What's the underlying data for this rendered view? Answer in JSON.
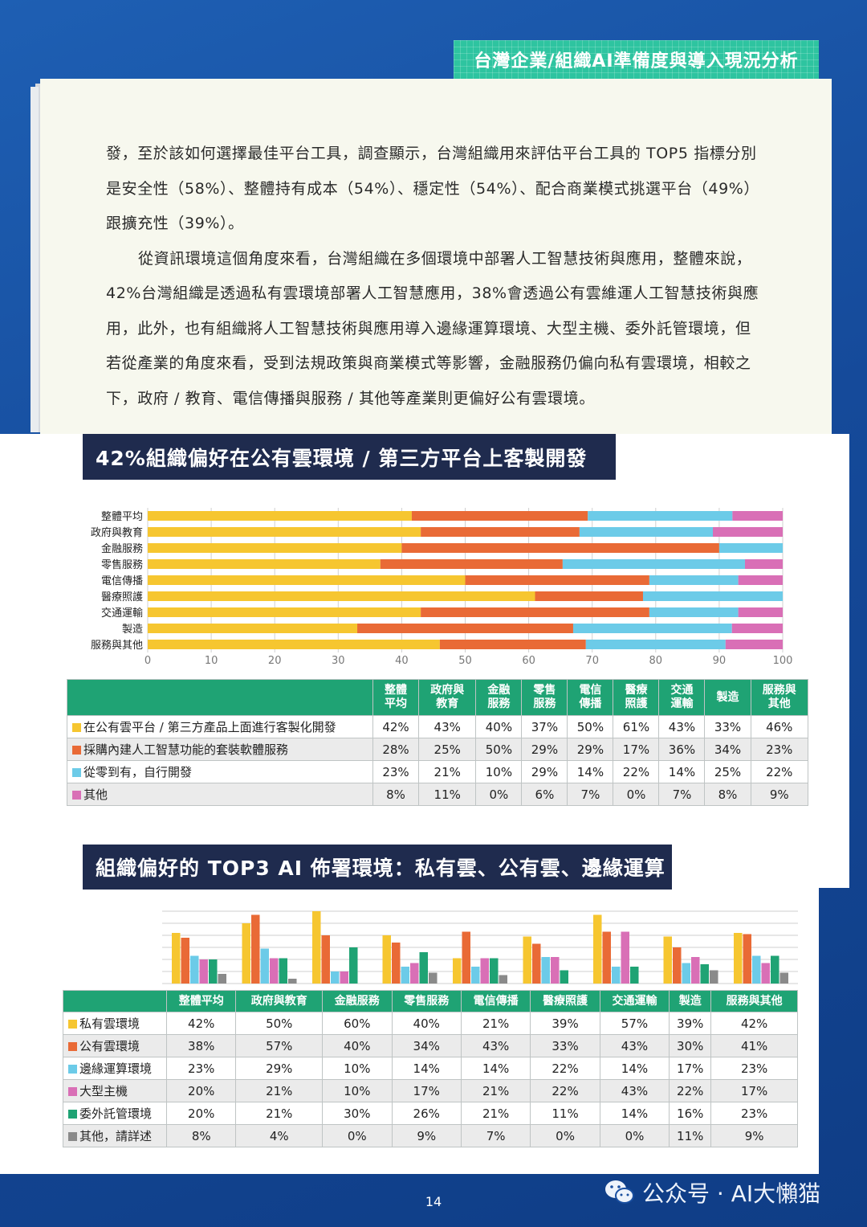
{
  "header": {
    "title": "台灣企業/組織AI準備度與導入現況分析"
  },
  "body": {
    "paragraph1": "發，至於該如何選擇最佳平台工具，調查顯示，台灣組織用來評估平台工具的 TOP5 指標分別是安全性（58%）、整體持有成本（54%）、穩定性（54%）、配合商業模式挑選平台（49%）跟擴充性（39%）。",
    "paragraph2": "從資訊環境這個角度來看，台灣組織在多個環境中部署人工智慧技術與應用，整體來說，42%台灣組織是透過私有雲環境部署人工智慧應用，38%會透過公有雲維運人工智慧技術與應用，此外，也有組織將人工智慧技術與應用導入邊緣運算環境、大型主機、委外託管環境，但若從產業的角度來看，受到法規政策與商業模式等影響，金融服務仍偏向私有雲環境，相較之下，政府 / 教育、電信傳播與服務 / 其他等產業則更偏好公有雲環境。"
  },
  "section1": {
    "title": "42%組織偏好在公有雲環境 / 第三方平台上客製開發"
  },
  "section2": {
    "title": "組織偏好的 TOP3 AI 佈署環境：私有雲、公有雲、邊緣運算"
  },
  "colors": {
    "yellow": "#f6c630",
    "orange": "#e96a36",
    "cyan": "#6ccbe8",
    "pink": "#d96fb6",
    "green": "#1fa374",
    "gray": "#8a8a8a",
    "navy": "#1f2b4e"
  },
  "chart_data": [
    {
      "type": "bar",
      "orientation": "horizontal-stacked",
      "categories": [
        "整體平均",
        "政府與教育",
        "金融服務",
        "零售服務",
        "電信傳播",
        "醫療照護",
        "交通運輸",
        "製造",
        "服務與其他"
      ],
      "xticks": [
        "0",
        "10",
        "20",
        "30",
        "40",
        "50",
        "60",
        "70",
        "80",
        "90",
        "100"
      ],
      "xlim": [
        0,
        100
      ],
      "grid": true,
      "series": [
        {
          "color": "yellow",
          "values": [
            42,
            43,
            40,
            37,
            50,
            61,
            43,
            33,
            46
          ]
        },
        {
          "color": "orange",
          "values": [
            28,
            25,
            50,
            29,
            29,
            17,
            36,
            34,
            23
          ]
        },
        {
          "color": "cyan",
          "values": [
            23,
            21,
            10,
            29,
            14,
            22,
            14,
            25,
            22
          ]
        },
        {
          "color": "pink",
          "values": [
            8,
            11,
            0,
            6,
            7,
            0,
            7,
            8,
            9
          ]
        }
      ],
      "table": {
        "headers": [
          "整體\n平均",
          "政府與\n教育",
          "金融\n服務",
          "零售\n服務",
          "電信\n傳播",
          "醫療\n照護",
          "交通\n運輸",
          "製造",
          "服務與\n其他"
        ],
        "rows": [
          {
            "label": "在公有雲平台 / 第三方產品上面進行客製化開發",
            "color": "yellow",
            "cells": [
              "42%",
              "43%",
              "40%",
              "37%",
              "50%",
              "61%",
              "43%",
              "33%",
              "46%"
            ]
          },
          {
            "label": "採購內建人工智慧功能的套裝軟體服務",
            "color": "orange",
            "cells": [
              "28%",
              "25%",
              "50%",
              "29%",
              "29%",
              "17%",
              "36%",
              "34%",
              "23%"
            ]
          },
          {
            "label": "從零到有，自行開發",
            "color": "cyan",
            "cells": [
              "23%",
              "21%",
              "10%",
              "29%",
              "14%",
              "22%",
              "14%",
              "25%",
              "22%"
            ]
          },
          {
            "label": "其他",
            "color": "pink",
            "cells": [
              "8%",
              "11%",
              "0%",
              "6%",
              "7%",
              "0%",
              "7%",
              "8%",
              "9%"
            ]
          }
        ]
      }
    },
    {
      "type": "bar",
      "orientation": "grouped-vertical",
      "categories": [
        "整體平均",
        "政府與教育",
        "金融服務",
        "零售服務",
        "電信傳播",
        "醫療照護",
        "交通運輸",
        "製造",
        "服務與其他"
      ],
      "ylim": [
        0,
        60
      ],
      "grid": true,
      "series": [
        {
          "name": "私有雲環境",
          "color": "yellow",
          "values": [
            42,
            50,
            60,
            40,
            21,
            39,
            57,
            39,
            42
          ]
        },
        {
          "name": "公有雲環境",
          "color": "orange",
          "values": [
            38,
            57,
            40,
            34,
            43,
            33,
            43,
            30,
            41
          ]
        },
        {
          "name": "邊緣運算環境",
          "color": "cyan",
          "values": [
            23,
            29,
            10,
            14,
            14,
            22,
            14,
            17,
            23
          ]
        },
        {
          "name": "大型主機",
          "color": "pink",
          "values": [
            20,
            21,
            10,
            17,
            21,
            22,
            43,
            22,
            17
          ]
        },
        {
          "name": "委外託管環境",
          "color": "green",
          "values": [
            20,
            21,
            30,
            26,
            21,
            11,
            14,
            16,
            23
          ]
        },
        {
          "name": "其他，請詳述",
          "color": "gray",
          "values": [
            8,
            4,
            0,
            9,
            7,
            0,
            0,
            11,
            9
          ]
        }
      ],
      "table": {
        "headers": [
          "整體平均",
          "政府與教育",
          "金融服務",
          "零售服務",
          "電信傳播",
          "醫療照護",
          "交通運輸",
          "製造",
          "服務與其他"
        ],
        "rows": [
          {
            "label": "私有雲環境",
            "color": "yellow",
            "cells": [
              "42%",
              "50%",
              "60%",
              "40%",
              "21%",
              "39%",
              "57%",
              "39%",
              "42%"
            ]
          },
          {
            "label": "公有雲環境",
            "color": "orange",
            "cells": [
              "38%",
              "57%",
              "40%",
              "34%",
              "43%",
              "33%",
              "43%",
              "30%",
              "41%"
            ]
          },
          {
            "label": "邊緣運算環境",
            "color": "cyan",
            "cells": [
              "23%",
              "29%",
              "10%",
              "14%",
              "14%",
              "22%",
              "14%",
              "17%",
              "23%"
            ]
          },
          {
            "label": "大型主機",
            "color": "pink",
            "cells": [
              "20%",
              "21%",
              "10%",
              "17%",
              "21%",
              "22%",
              "43%",
              "22%",
              "17%"
            ]
          },
          {
            "label": "委外託管環境",
            "color": "green",
            "cells": [
              "20%",
              "21%",
              "30%",
              "26%",
              "21%",
              "11%",
              "14%",
              "16%",
              "23%"
            ]
          },
          {
            "label": "其他，請詳述",
            "color": "gray",
            "cells": [
              "8%",
              "4%",
              "0%",
              "9%",
              "7%",
              "0%",
              "0%",
              "11%",
              "9%"
            ]
          }
        ]
      }
    }
  ],
  "footer": {
    "page_number": "14",
    "watermark": "公众号 · AI大懶猫",
    "watermark_icon": "wechat-icon"
  }
}
